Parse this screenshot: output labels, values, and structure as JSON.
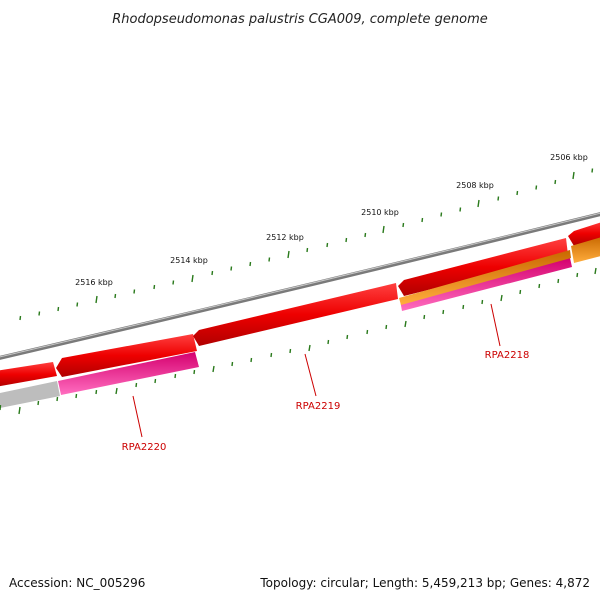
{
  "title": "Rhodopseudomonas palustris CGA009, complete genome",
  "footer": {
    "accession": "Accession: NC_005296",
    "summary": "Topology: circular; Length: 5,459,213 bp; Genes: 4,872"
  },
  "ticks": [
    {
      "label": "2506 kbp"
    },
    {
      "label": "2508 kbp"
    },
    {
      "label": "2510 kbp"
    },
    {
      "label": "2512 kbp"
    },
    {
      "label": "2514 kbp"
    },
    {
      "label": "2516 kbp"
    }
  ],
  "genes": [
    {
      "label": "RPA2218"
    },
    {
      "label": "RPA2219"
    },
    {
      "label": "RPA2220"
    }
  ],
  "colors": {
    "backbone": "#7a7a7a",
    "cds": "#ee0000",
    "misc": "#ff3aa6",
    "orange": "#ff8c00",
    "grey": "#bbbbbb",
    "tick": "#2a7a1c",
    "gene_label": "#cc0000"
  }
}
